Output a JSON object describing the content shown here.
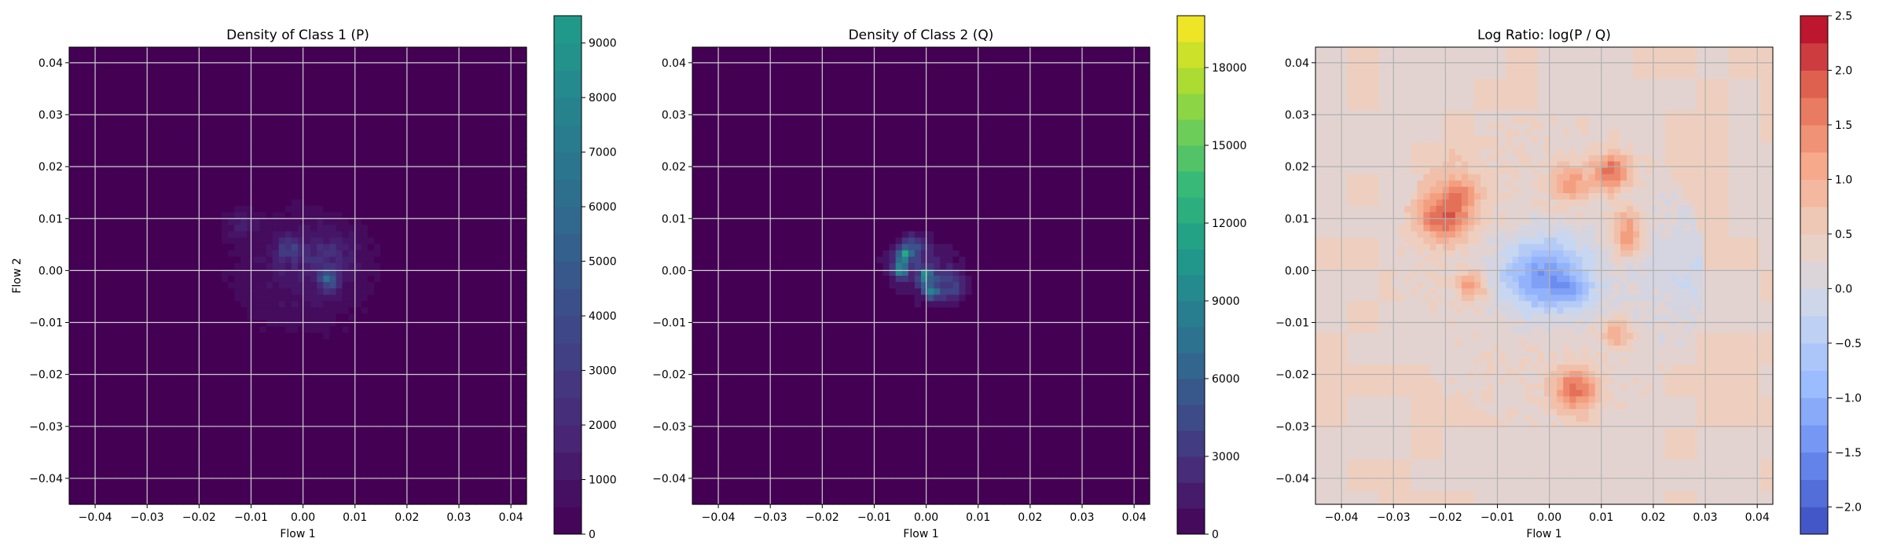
{
  "chart_data": [
    {
      "type": "heatmap",
      "title": "Density of Class 1 (P)",
      "xlabel": "Flow 1",
      "ylabel": "Flow 2",
      "xlim": [
        -0.045,
        0.043
      ],
      "ylim": [
        -0.045,
        0.043
      ],
      "xticks": [
        -0.04,
        -0.03,
        -0.02,
        -0.01,
        0.0,
        0.01,
        0.02,
        0.03,
        0.04
      ],
      "yticks": [
        -0.04,
        -0.03,
        -0.02,
        -0.01,
        0.0,
        0.01,
        0.02,
        0.03,
        0.04
      ],
      "xtick_labels": [
        "−0.04",
        "−0.03",
        "−0.02",
        "−0.01",
        "0.00",
        "0.01",
        "0.02",
        "0.03",
        "0.04"
      ],
      "ytick_labels": [
        "−0.04",
        "−0.03",
        "−0.02",
        "−0.01",
        "0.00",
        "0.01",
        "0.02",
        "0.03",
        "0.04"
      ],
      "grid": true,
      "colormap": "viridis",
      "colorbar": {
        "range": [
          0,
          9500
        ],
        "ticks": [
          0,
          1000,
          2000,
          3000,
          4000,
          5000,
          6000,
          7000,
          8000,
          9000
        ],
        "tick_labels": [
          "0",
          "1000",
          "2000",
          "3000",
          "4000",
          "5000",
          "6000",
          "7000",
          "8000",
          "9000"
        ],
        "levels": 19,
        "cmap_max_fraction": 0.55
      },
      "background_color": "#440154",
      "blobs": [
        {
          "x": 0.0,
          "y": 0.0,
          "sx": 0.011,
          "sy": 0.009,
          "peak": 1200
        },
        {
          "x": 0.004,
          "y": 0.003,
          "sx": 0.004,
          "sy": 0.003,
          "peak": 1500
        },
        {
          "x": 0.005,
          "y": -0.002,
          "sx": 0.0012,
          "sy": 0.0012,
          "peak": 4500
        },
        {
          "x": -0.003,
          "y": 0.004,
          "sx": 0.0015,
          "sy": 0.0015,
          "peak": 2500
        },
        {
          "x": -0.012,
          "y": 0.009,
          "sx": 0.002,
          "sy": 0.002,
          "peak": 1200
        }
      ]
    },
    {
      "type": "heatmap",
      "title": "Density of Class 2 (Q)",
      "xlabel": "Flow 1",
      "ylabel": "",
      "xlim": [
        -0.045,
        0.043
      ],
      "ylim": [
        -0.045,
        0.043
      ],
      "xticks": [
        -0.04,
        -0.03,
        -0.02,
        -0.01,
        0.0,
        0.01,
        0.02,
        0.03,
        0.04
      ],
      "yticks": [
        -0.04,
        -0.03,
        -0.02,
        -0.01,
        0.0,
        0.01,
        0.02,
        0.03,
        0.04
      ],
      "xtick_labels": [
        "−0.04",
        "−0.03",
        "−0.02",
        "−0.01",
        "0.00",
        "0.01",
        "0.02",
        "0.03",
        "0.04"
      ],
      "ytick_labels": [
        "−0.04",
        "−0.03",
        "−0.02",
        "−0.01",
        "0.00",
        "0.01",
        "0.02",
        "0.03",
        "0.04"
      ],
      "grid": true,
      "colormap": "viridis",
      "colorbar": {
        "range": [
          0,
          20000
        ],
        "ticks": [
          0,
          3000,
          6000,
          9000,
          12000,
          15000,
          18000
        ],
        "tick_labels": [
          "0",
          "3000",
          "6000",
          "9000",
          "12000",
          "15000",
          "18000"
        ],
        "levels": 20,
        "cmap_max_fraction": 1.0
      },
      "background_color": "#440154",
      "blobs": [
        {
          "x": -0.001,
          "y": 0.0,
          "sx": 0.006,
          "sy": 0.005,
          "peak": 2200
        },
        {
          "x": -0.004,
          "y": 0.003,
          "sx": 0.0012,
          "sy": 0.0012,
          "peak": 9000
        },
        {
          "x": -0.005,
          "y": 0.0,
          "sx": 0.001,
          "sy": 0.001,
          "peak": 7000
        },
        {
          "x": 0.0,
          "y": -0.001,
          "sx": 0.0012,
          "sy": 0.0012,
          "peak": 8000
        },
        {
          "x": 0.001,
          "y": -0.004,
          "sx": 0.001,
          "sy": 0.001,
          "peak": 7500
        },
        {
          "x": 0.005,
          "y": -0.003,
          "sx": 0.002,
          "sy": 0.002,
          "peak": 3500
        },
        {
          "x": -0.002,
          "y": 0.005,
          "sx": 0.0015,
          "sy": 0.0015,
          "peak": 3000
        }
      ]
    },
    {
      "type": "heatmap",
      "title": "Log Ratio: log(P / Q)",
      "xlabel": "Flow 1",
      "ylabel": "",
      "xlim": [
        -0.045,
        0.043
      ],
      "ylim": [
        -0.045,
        0.043
      ],
      "xticks": [
        -0.04,
        -0.03,
        -0.02,
        -0.01,
        0.0,
        0.01,
        0.02,
        0.03,
        0.04
      ],
      "yticks": [
        -0.04,
        -0.03,
        -0.02,
        -0.01,
        0.0,
        0.01,
        0.02,
        0.03,
        0.04
      ],
      "xtick_labels": [
        "−0.04",
        "−0.03",
        "−0.02",
        "−0.01",
        "0.00",
        "0.01",
        "0.02",
        "0.03",
        "0.04"
      ],
      "ytick_labels": [
        "−0.04",
        "−0.03",
        "−0.02",
        "−0.01",
        "0.00",
        "0.01",
        "0.02",
        "0.03",
        "0.04"
      ],
      "grid": true,
      "colormap": "coolwarm",
      "colorbar": {
        "range": [
          -2.25,
          2.5
        ],
        "ticks": [
          -2.0,
          -1.5,
          -1.0,
          -0.5,
          0.0,
          0.5,
          1.0,
          1.5,
          2.0,
          2.5
        ],
        "tick_labels": [
          "−2.0",
          "−1.5",
          "−1.0",
          "−0.5",
          "0.0",
          "0.5",
          "1.0",
          "1.5",
          "2.0",
          "2.5"
        ],
        "levels": 19,
        "cmap_max_fraction": 1.0
      },
      "base_value": 0.45,
      "blobs": [
        {
          "x": -0.02,
          "y": 0.01,
          "sx": 0.0035,
          "sy": 0.003,
          "peak": 1.5
        },
        {
          "x": -0.017,
          "y": 0.015,
          "sx": 0.0025,
          "sy": 0.002,
          "peak": 0.9
        },
        {
          "x": 0.012,
          "y": 0.019,
          "sx": 0.0025,
          "sy": 0.0025,
          "peak": 1.5
        },
        {
          "x": 0.004,
          "y": 0.017,
          "sx": 0.0025,
          "sy": 0.0025,
          "peak": 1.0
        },
        {
          "x": 0.015,
          "y": 0.007,
          "sx": 0.002,
          "sy": 0.003,
          "peak": 1.2
        },
        {
          "x": 0.005,
          "y": -0.023,
          "sx": 0.003,
          "sy": 0.003,
          "peak": 1.4
        },
        {
          "x": -0.015,
          "y": -0.003,
          "sx": 0.002,
          "sy": 0.002,
          "peak": 1.0
        },
        {
          "x": 0.013,
          "y": -0.012,
          "sx": 0.002,
          "sy": 0.002,
          "peak": 0.8
        },
        {
          "x": -0.025,
          "y": 0.02,
          "sx": 0.008,
          "sy": 0.006,
          "peak": 0.4
        },
        {
          "x": -0.001,
          "y": -0.001,
          "sx": 0.006,
          "sy": 0.005,
          "peak": -1.6
        },
        {
          "x": 0.004,
          "y": -0.004,
          "sx": 0.0025,
          "sy": 0.002,
          "peak": -0.7
        },
        {
          "x": 0.03,
          "y": 0.0,
          "sx": 0.012,
          "sy": 0.01,
          "peak": -0.4
        },
        {
          "x": -0.03,
          "y": -0.015,
          "sx": 0.008,
          "sy": 0.006,
          "peak": -0.15
        }
      ]
    }
  ]
}
